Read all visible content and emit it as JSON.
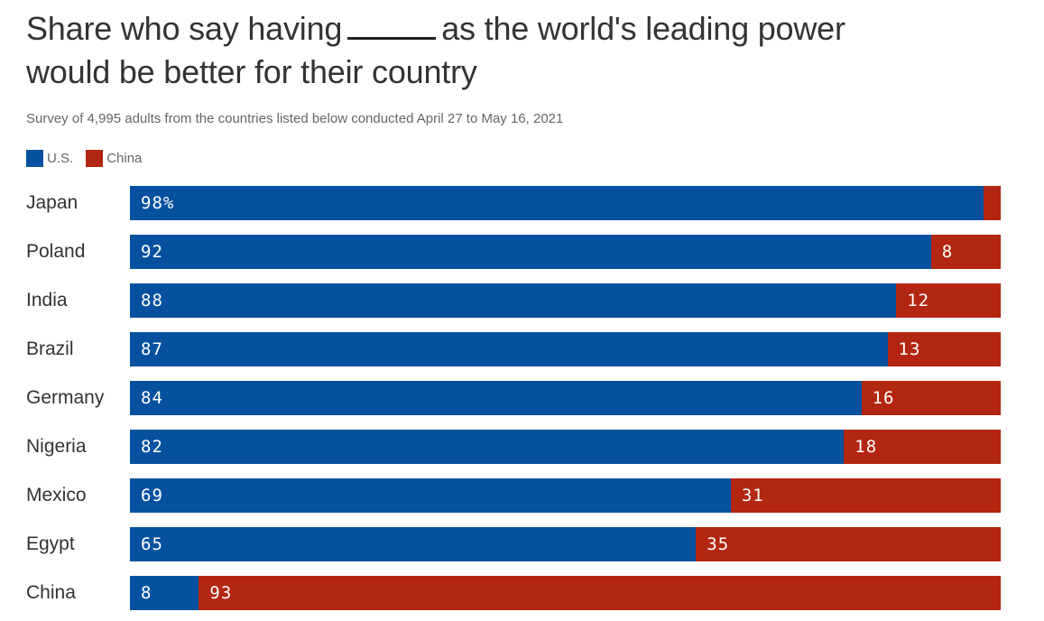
{
  "header": {
    "title_part1": "Share who say having",
    "title_part2": "as the world's leading power",
    "title_line2": "would be better for their country",
    "subtitle": "Survey of 4,995 adults from the countries listed below conducted April 27 to May 16, 2021"
  },
  "colors": {
    "us": "#06519f",
    "china": "#b32611"
  },
  "chart_data": {
    "type": "bar",
    "orientation": "horizontal",
    "stacked": true,
    "title": "Share who say having _____ as the world's leading power would be better for their country",
    "subtitle": "Survey of 4,995 adults from the countries listed below conducted April 27 to May 16, 2021",
    "legend": [
      "U.S.",
      "China"
    ],
    "legend_position": "top-left",
    "categories": [
      "Japan",
      "Poland",
      "India",
      "Brazil",
      "Germany",
      "Nigeria",
      "Mexico",
      "Egypt",
      "China"
    ],
    "series": [
      {
        "name": "U.S.",
        "values": [
          98,
          92,
          88,
          87,
          84,
          82,
          69,
          65,
          8
        ],
        "labels": [
          "98%",
          "92",
          "88",
          "87",
          "84",
          "82",
          "69",
          "65",
          "8"
        ]
      },
      {
        "name": "China",
        "values": [
          2,
          8,
          12,
          13,
          16,
          18,
          31,
          35,
          93
        ],
        "labels": [
          "",
          "8",
          "12",
          "13",
          "16",
          "18",
          "31",
          "35",
          "93"
        ]
      }
    ],
    "unit": "%",
    "grid": false
  }
}
